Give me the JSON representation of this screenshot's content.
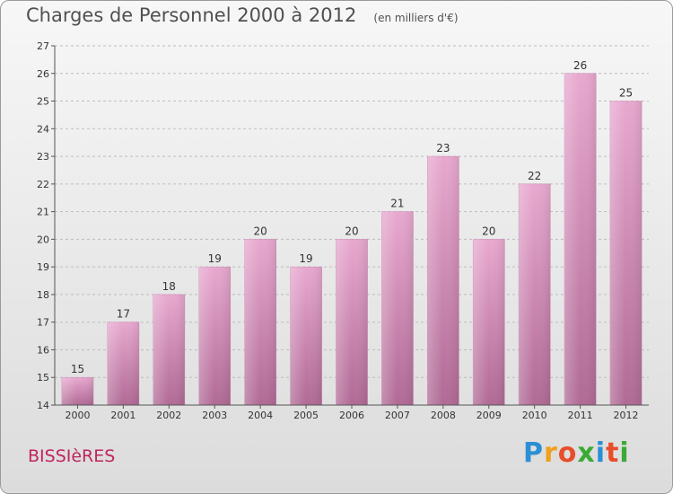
{
  "header": {
    "title": "Charges de Personnel 2000 à 2012",
    "subtitle": "(en milliers d'€)"
  },
  "footer": {
    "commune": "BISSIèRES",
    "logo_letters": [
      "P",
      "r",
      "o",
      "x",
      "i",
      "t",
      "i"
    ],
    "logo_colors": [
      "#2a8fd4",
      "#f0a020",
      "#e84d2a",
      "#3aaa35",
      "#2a8fd4",
      "#e84d2a",
      "#3aaa35"
    ]
  },
  "colors": {
    "bar_top": "#e8a8cf",
    "bar_bottom": "#b06a95",
    "axis": "#555555",
    "grid": "#bdbdbd"
  },
  "chart_data": {
    "type": "bar",
    "title": "Charges de Personnel 2000 à 2012",
    "subtitle": "(en milliers d'€)",
    "categories": [
      "2000",
      "2001",
      "2002",
      "2003",
      "2004",
      "2005",
      "2006",
      "2007",
      "2008",
      "2009",
      "2010",
      "2011",
      "2012"
    ],
    "values": [
      15,
      17,
      18,
      19,
      20,
      19,
      20,
      21,
      23,
      20,
      22,
      26,
      25
    ],
    "ylim": [
      14,
      27
    ],
    "yticks": [
      14,
      15,
      16,
      17,
      18,
      19,
      20,
      21,
      22,
      23,
      24,
      25,
      26,
      27
    ],
    "grid": "horizontal-dashed",
    "legend": "none"
  }
}
